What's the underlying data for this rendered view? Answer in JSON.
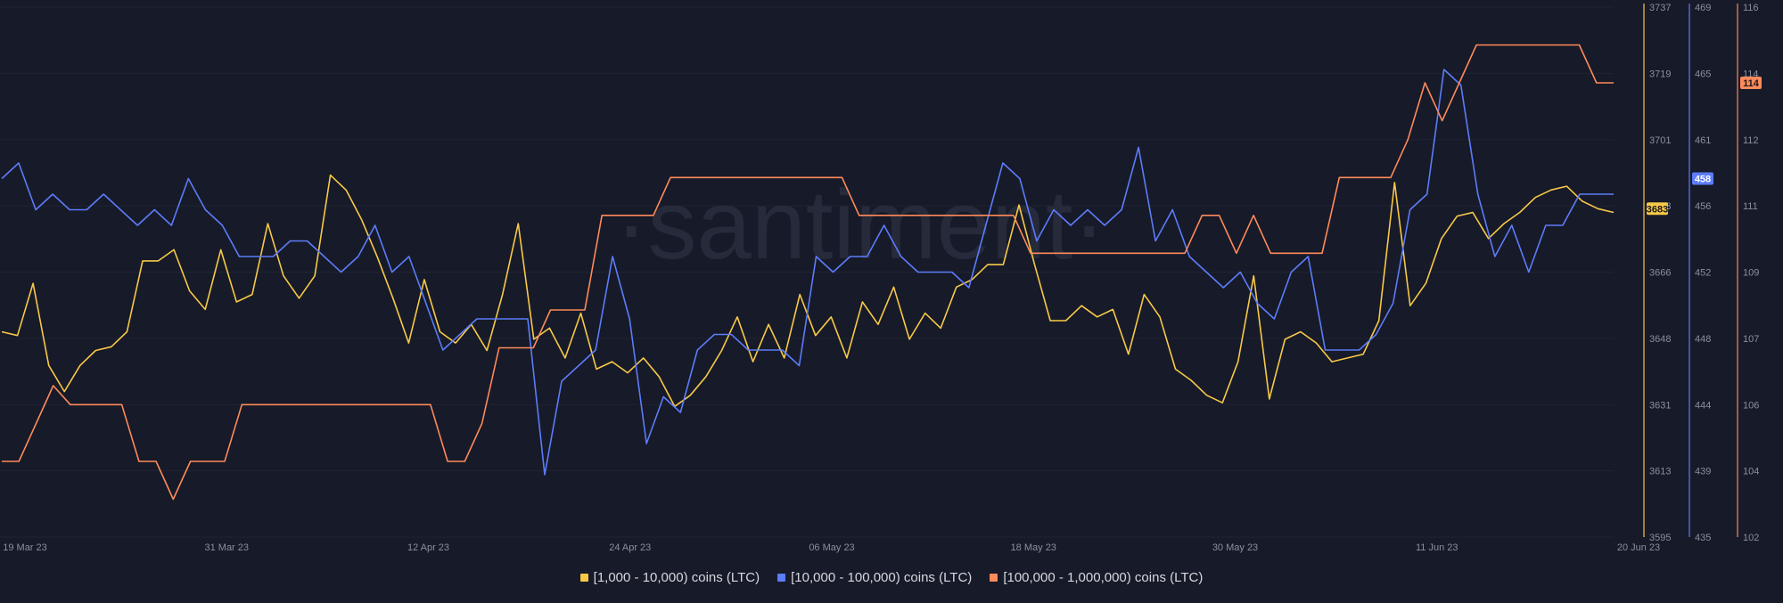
{
  "watermark": "·santiment·",
  "chart_data": {
    "type": "line",
    "x_tick_labels": [
      "19 Mar 23",
      "31 Mar 23",
      "12 Apr 23",
      "24 Apr 23",
      "06 May 23",
      "18 May 23",
      "30 May 23",
      "11 Jun 23",
      "20 Jun 23"
    ],
    "axes": [
      {
        "id": "y1",
        "color": "#f7c948",
        "ticks": [
          "3737",
          "3719",
          "3701",
          "3683",
          "3666",
          "3648",
          "3631",
          "3613",
          "3595"
        ],
        "range": [
          3595,
          3737
        ],
        "badge": "3683"
      },
      {
        "id": "y2",
        "color": "#5c7cfa",
        "ticks": [
          "469",
          "465",
          "461",
          "456",
          "452",
          "448",
          "444",
          "439",
          "435"
        ],
        "range": [
          435,
          469
        ],
        "badge": "458"
      },
      {
        "id": "y3",
        "color": "#ff8a5b",
        "ticks": [
          "116",
          "114",
          "112",
          "111",
          "109",
          "107",
          "106",
          "104",
          "102"
        ],
        "range": [
          102,
          116
        ],
        "badge": "114"
      }
    ],
    "series": [
      {
        "name": "[1,000 - 10,000) coins (LTC)",
        "color": "#f7c948",
        "axis": "y1",
        "values": [
          3650,
          3649,
          3663,
          3641,
          3634,
          3641,
          3645,
          3646,
          3650,
          3669,
          3669,
          3672,
          3661,
          3656,
          3672,
          3658,
          3660,
          3679,
          3665,
          3659,
          3665,
          3692,
          3688,
          3680,
          3670,
          3659,
          3647,
          3664,
          3650,
          3647,
          3652,
          3645,
          3660,
          3679,
          3648,
          3651,
          3643,
          3655,
          3640,
          3642,
          3639,
          3643,
          3638,
          3630,
          3633,
          3638,
          3645,
          3654,
          3642,
          3652,
          3643,
          3660,
          3649,
          3654,
          3643,
          3658,
          3652,
          3662,
          3648,
          3655,
          3651,
          3662,
          3664,
          3668,
          3668,
          3684,
          3668,
          3653,
          3653,
          3657,
          3654,
          3656,
          3644,
          3660,
          3654,
          3640,
          3637,
          3633,
          3631,
          3642,
          3665,
          3632,
          3648,
          3650,
          3647,
          3642,
          3643,
          3644,
          3653,
          3690,
          3657,
          3663,
          3675,
          3681,
          3682,
          3675,
          3679,
          3682,
          3686,
          3688,
          3689,
          3685,
          3683,
          3682
        ]
      },
      {
        "name": "[10,000 - 100,000) coins (LTC)",
        "color": "#5c7cfa",
        "axis": "y2",
        "values": [
          458,
          459,
          456,
          457,
          456,
          456,
          457,
          456,
          455,
          456,
          455,
          458,
          456,
          455,
          453,
          453,
          453,
          454,
          454,
          453,
          452,
          453,
          455,
          452,
          453,
          450,
          447,
          448,
          449,
          449,
          449,
          449,
          439,
          445,
          446,
          447,
          453,
          449,
          441,
          444,
          443,
          447,
          448,
          448,
          447,
          447,
          447,
          446,
          453,
          452,
          453,
          453,
          455,
          453,
          452,
          452,
          452,
          451,
          455,
          459,
          458,
          454,
          456,
          455,
          456,
          455,
          456,
          460,
          454,
          456,
          453,
          452,
          451,
          452,
          450,
          449,
          452,
          453,
          447,
          447,
          447,
          448,
          450,
          456,
          457,
          465,
          464,
          457,
          453,
          455,
          452,
          455,
          455,
          457,
          457,
          457
        ]
      },
      {
        "name": "[100,000  - 1,000,000) coins (LTC)",
        "color": "#ff8a5b",
        "axis": "y3",
        "values": [
          104,
          104,
          105,
          106,
          105.5,
          105.5,
          105.5,
          105.5,
          104,
          104,
          103,
          104,
          104,
          104,
          105.5,
          105.5,
          105.5,
          105.5,
          105.5,
          105.5,
          105.5,
          105.5,
          105.5,
          105.5,
          105.5,
          105.5,
          104,
          104,
          105,
          107,
          107,
          107,
          108,
          108,
          108,
          110.5,
          110.5,
          110.5,
          110.5,
          111.5,
          111.5,
          111.5,
          111.5,
          111.5,
          111.5,
          111.5,
          111.5,
          111.5,
          111.5,
          111.5,
          110.5,
          110.5,
          110.5,
          110.5,
          110.5,
          110.5,
          110.5,
          110.5,
          110.5,
          110.5,
          109.5,
          109.5,
          109.5,
          109.5,
          109.5,
          109.5,
          109.5,
          109.5,
          109.5,
          109.5,
          110.5,
          110.5,
          109.5,
          110.5,
          109.5,
          109.5,
          109.5,
          109.5,
          111.5,
          111.5,
          111.5,
          111.5,
          112.5,
          114,
          113,
          114,
          115,
          115,
          115,
          115,
          115,
          115,
          115,
          114,
          114
        ]
      }
    ]
  }
}
